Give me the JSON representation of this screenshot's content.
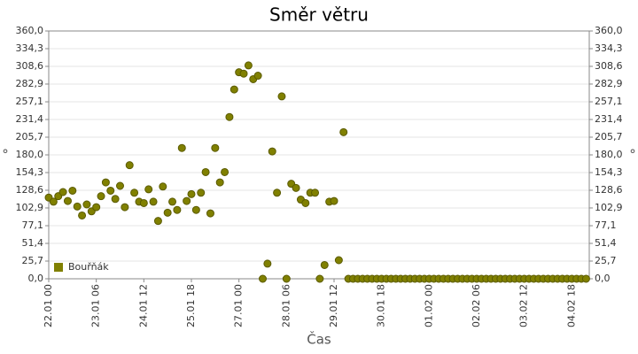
{
  "chart_data": {
    "type": "scatter",
    "title": "Směr větru",
    "x_label": "Čas",
    "y_label": "°",
    "x": [
      "22.01 00",
      "22.01 03",
      "22.01 06",
      "22.01 09",
      "22.01 12",
      "22.01 15",
      "22.01 18",
      "22.01 21",
      "23.01 00",
      "23.01 03",
      "23.01 06",
      "23.01 09",
      "23.01 12",
      "23.01 15",
      "23.01 18",
      "23.01 21",
      "24.01 00",
      "24.01 03",
      "24.01 06",
      "24.01 09",
      "24.01 12",
      "24.01 15",
      "24.01 18",
      "24.01 21",
      "25.01 00",
      "25.01 03",
      "25.01 06",
      "25.01 09",
      "25.01 12",
      "25.01 15",
      "25.01 18",
      "25.01 21",
      "26.01 00",
      "26.01 03",
      "26.01 06",
      "26.01 09",
      "26.01 12",
      "26.01 15",
      "26.01 18",
      "26.01 21",
      "27.01 00",
      "27.01 03",
      "27.01 06",
      "27.01 09",
      "27.01 12",
      "27.01 15",
      "27.01 18",
      "27.01 21",
      "28.01 00",
      "28.01 03",
      "28.01 06",
      "28.01 09",
      "28.01 12",
      "28.01 15",
      "28.01 18",
      "28.01 21",
      "29.01 00",
      "29.01 03",
      "29.01 06",
      "29.01 09",
      "29.01 12",
      "29.01 15",
      "29.01 18",
      "29.01 21",
      "30.01 00",
      "30.01 03",
      "30.01 06",
      "30.01 09",
      "30.01 12",
      "30.01 15",
      "30.01 18",
      "30.01 21",
      "31.01 00",
      "31.01 03",
      "31.01 06",
      "31.01 09",
      "31.01 12",
      "31.01 15",
      "31.01 18",
      "31.01 21",
      "01.02 00",
      "01.02 03",
      "01.02 06",
      "01.02 09",
      "01.02 12",
      "01.02 15",
      "01.02 18",
      "01.02 21",
      "02.02 00",
      "02.02 03",
      "02.02 06",
      "02.02 09",
      "02.02 12",
      "02.02 15",
      "02.02 18",
      "02.02 21",
      "03.02 00",
      "03.02 03",
      "03.02 06",
      "03.02 09",
      "03.02 12",
      "03.02 15",
      "03.02 18",
      "03.02 21",
      "04.02 00",
      "04.02 03",
      "04.02 06",
      "04.02 09",
      "04.02 12",
      "04.02 15",
      "04.02 18",
      "04.02 21",
      "05.02 00",
      "05.02 03"
    ],
    "series": [
      {
        "name": "Bouřňák",
        "color": "#808000",
        "values": [
          118,
          112,
          120,
          126,
          113,
          128,
          105,
          92,
          108,
          98,
          104,
          120,
          140,
          128,
          116,
          135,
          104,
          165,
          125,
          112,
          110,
          130,
          112,
          84,
          134,
          96,
          112,
          100,
          190,
          113,
          123,
          100,
          125,
          155,
          95,
          190,
          140,
          155,
          235,
          275,
          300,
          298,
          310,
          290,
          295,
          0,
          22,
          185,
          125,
          265,
          0,
          138,
          132,
          115,
          110,
          125,
          125,
          0,
          20,
          112,
          113,
          27,
          213,
          0,
          0,
          0,
          0,
          0,
          0,
          0,
          0,
          0,
          0,
          0,
          0,
          0,
          0,
          0,
          0,
          0,
          0,
          0,
          0,
          0,
          0,
          0,
          0,
          0,
          0,
          0,
          0,
          0,
          0,
          0,
          0,
          0,
          0,
          0,
          0,
          0,
          0,
          0,
          0,
          0,
          0,
          0,
          0,
          0,
          0,
          0,
          0,
          0,
          0,
          0
        ]
      }
    ],
    "xlim": [
      "22.01 00",
      "05.02 05"
    ],
    "xticks": [
      "22.01 00",
      "23.01 06",
      "24.01 12",
      "25.01 18",
      "27.01 00",
      "28.01 06",
      "29.01 12",
      "30.01 18",
      "01.02 00",
      "02.02 06",
      "03.02 12",
      "04.02 18"
    ],
    "ylim": [
      0,
      360
    ],
    "yticks": [
      {
        "value": 0,
        "label": "0,0"
      },
      {
        "value": 25.7,
        "label": "25,7"
      },
      {
        "value": 51.4,
        "label": "51,4"
      },
      {
        "value": 77.1,
        "label": "77,1"
      },
      {
        "value": 102.9,
        "label": "102,9"
      },
      {
        "value": 128.6,
        "label": "128,6"
      },
      {
        "value": 154.3,
        "label": "154,3"
      },
      {
        "value": 180,
        "label": "180,0"
      },
      {
        "value": 205.7,
        "label": "205,7"
      },
      {
        "value": 231.4,
        "label": "231,4"
      },
      {
        "value": 257.1,
        "label": "257,1"
      },
      {
        "value": 282.9,
        "label": "282,9"
      },
      {
        "value": 308.6,
        "label": "308,6"
      },
      {
        "value": 334.3,
        "label": "334,3"
      },
      {
        "value": 360,
        "label": "360,0"
      }
    ],
    "grid": true,
    "legend": "lower left"
  }
}
